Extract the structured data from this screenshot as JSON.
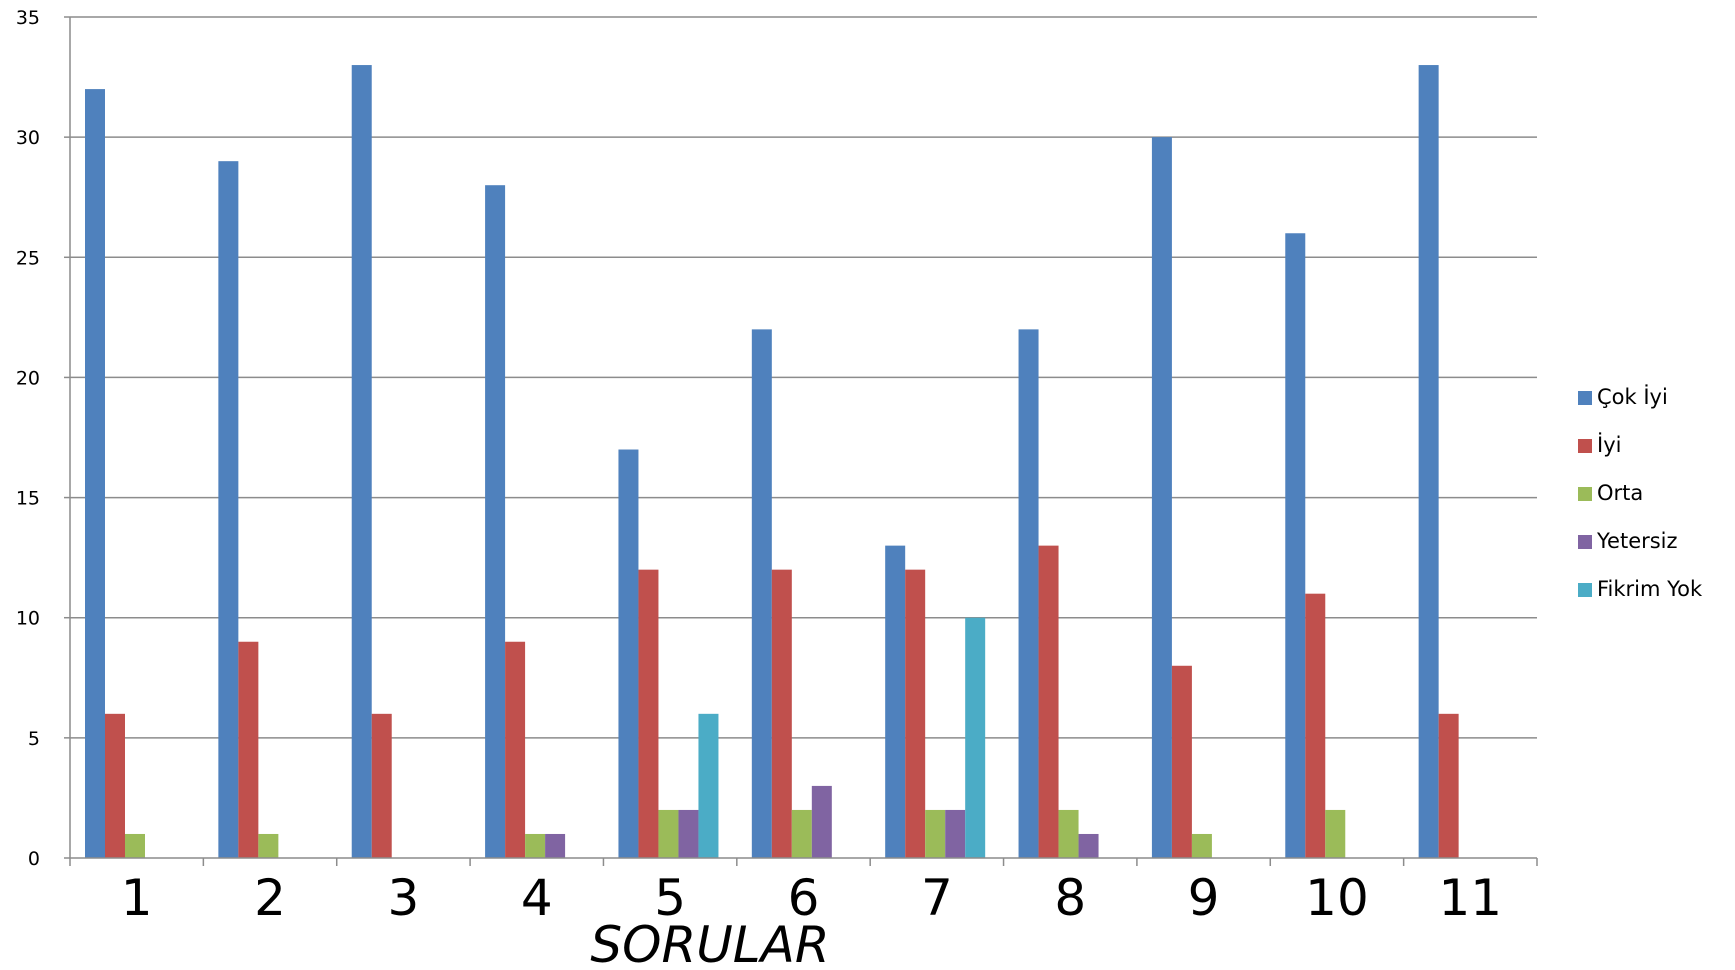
{
  "chart_data": {
    "type": "bar",
    "title": "",
    "xlabel": "SORULAR",
    "ylabel": "",
    "ylim": [
      0,
      35
    ],
    "yticks": [
      0,
      5,
      10,
      15,
      20,
      25,
      30,
      35
    ],
    "grid": true,
    "legend_position": "right",
    "categories": [
      "1",
      "2",
      "3",
      "4",
      "5",
      "6",
      "7",
      "8",
      "9",
      "10",
      "11"
    ],
    "series": [
      {
        "name": "Çok İyi",
        "color": "#4f81bd",
        "values": [
          32,
          29,
          33,
          28,
          17,
          22,
          13,
          22,
          30,
          26,
          33
        ]
      },
      {
        "name": "İyi",
        "color": "#c0504d",
        "values": [
          6,
          9,
          6,
          9,
          12,
          12,
          12,
          13,
          8,
          11,
          6
        ]
      },
      {
        "name": "Orta",
        "color": "#9bbb59",
        "values": [
          1,
          1,
          0,
          1,
          2,
          2,
          2,
          2,
          1,
          2,
          0
        ]
      },
      {
        "name": "Yetersiz",
        "color": "#8064a2",
        "values": [
          0,
          0,
          0,
          1,
          2,
          3,
          2,
          1,
          0,
          0,
          0
        ]
      },
      {
        "name": "Fikrim Yok",
        "color": "#4bacc6",
        "values": [
          0,
          0,
          0,
          0,
          6,
          0,
          10,
          0,
          0,
          0,
          0
        ]
      }
    ]
  }
}
